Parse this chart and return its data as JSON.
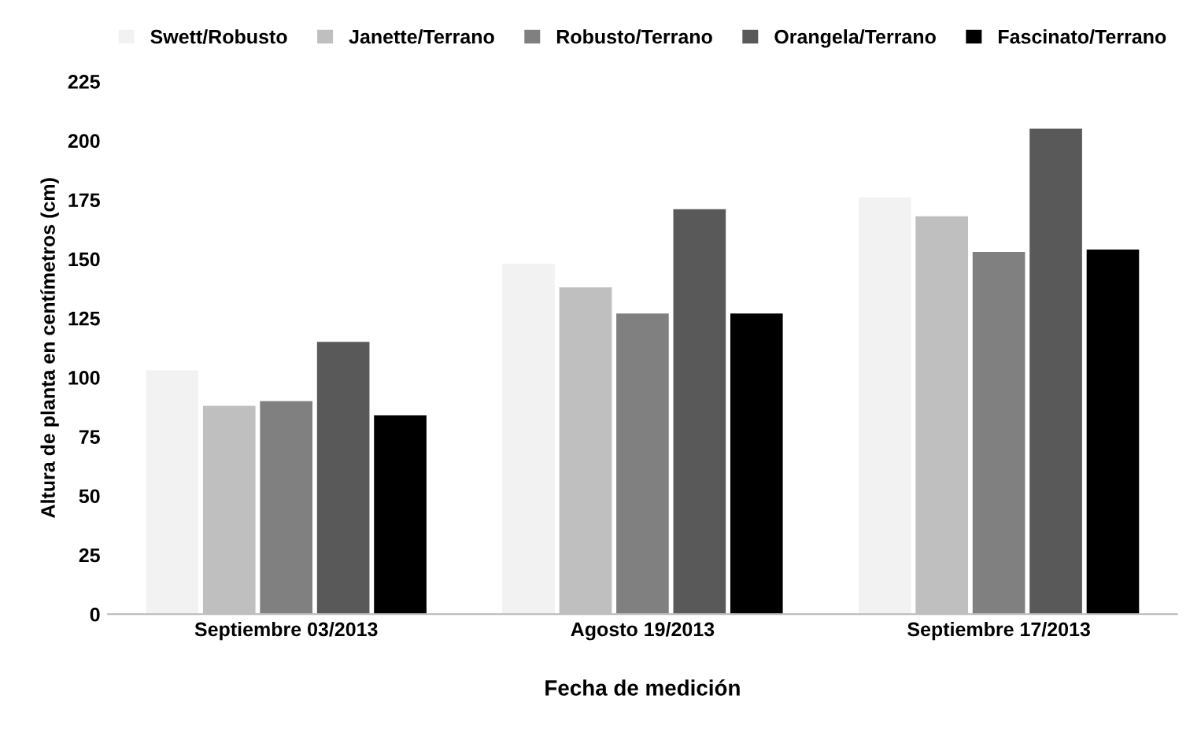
{
  "chart_data": {
    "type": "bar",
    "xlabel": "Fecha de medición",
    "ylabel": "Altura de planta en centímetros (cm)",
    "categories": [
      "Septiembre 03/2013",
      "Agosto 19/2013",
      "Septiembre 17/2013"
    ],
    "series": [
      {
        "name": "Swett/Robusto",
        "color": "#f2f2f2",
        "values": [
          103,
          148,
          176
        ]
      },
      {
        "name": "Janette/Terrano",
        "color": "#bfbfbf",
        "values": [
          88,
          138,
          168
        ]
      },
      {
        "name": "Robusto/Terrano",
        "color": "#808080",
        "values": [
          90,
          127,
          153
        ]
      },
      {
        "name": "Orangela/Terrano",
        "color": "#595959",
        "values": [
          115,
          171,
          205
        ]
      },
      {
        "name": "Fascinato/Terrano",
        "color": "#000000",
        "values": [
          84,
          127,
          154
        ]
      }
    ],
    "ylim": [
      0,
      225
    ],
    "yticks": [
      0,
      25,
      50,
      75,
      100,
      125,
      150,
      175,
      200,
      225
    ],
    "grid": false,
    "legend": "top"
  }
}
